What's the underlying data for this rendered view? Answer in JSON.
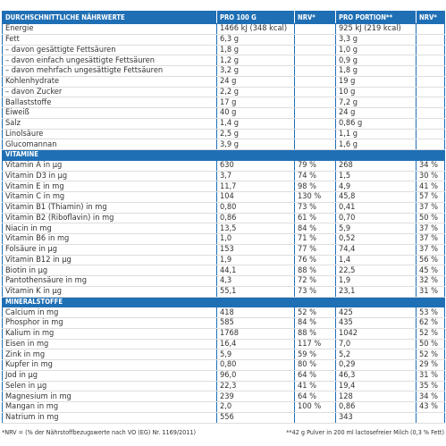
{
  "table": {
    "header": [
      "DURCHSCHNITTLICHE NÄHRWERTE",
      "PRO 100 G",
      "NRV*",
      "PRO PORTION**",
      "NRV*"
    ],
    "rows": [
      [
        "Energie",
        "1466 kJ (348 kcal)",
        null,
        "925 kJ (219 kcal)",
        null
      ],
      [
        "Fett",
        "6,3 g",
        null,
        "3,3 g",
        null
      ],
      [
        "– davon gesättigte Fettsäuren",
        "1,8 g",
        null,
        "1,0 g",
        null
      ],
      [
        "– davon einfach ungesättigte Fettsäuren",
        "1,2 g",
        null,
        "0,9 g",
        null
      ],
      [
        "– davon mehrfach ungesättigte Fettsäuren",
        "3,2 g",
        null,
        "1,8 g",
        null
      ],
      [
        "Kohlenhydrate",
        "24 g",
        null,
        "19 g",
        null
      ],
      [
        "– davon Zucker",
        "2,2 g",
        null,
        "10 g",
        null
      ],
      [
        "Ballaststoffe",
        "17 g",
        null,
        "7,2 g",
        null
      ],
      [
        "Eiweiß",
        "40 g",
        null,
        "24 g",
        null
      ],
      [
        "Salz",
        "1,4 g",
        null,
        "0,86 g",
        null
      ],
      [
        "Linolsäure",
        "2,5 g",
        null,
        "1,1 g",
        null
      ],
      [
        "Glucomannan",
        "3,9 g",
        null,
        "1,6 g",
        null
      ]
    ]
  },
  "vitamins": {
    "title": "VITAMINE",
    "rows": [
      [
        "Vitamin A in µg",
        "630",
        "79 %",
        "268",
        "34 %"
      ],
      [
        "Vitamin D3 in µg",
        "3,7",
        "74 %",
        "1,5",
        "30 %"
      ],
      [
        "Vitamin E in mg",
        "11,7",
        "98 %",
        "4,9",
        "41 %"
      ],
      [
        "Vitamin C in mg",
        "104",
        "130 %",
        "45,8",
        "57 %"
      ],
      [
        "Vitamin B1 (Thiamin) in mg",
        "0,80",
        "73 %",
        "0,41",
        "37 %"
      ],
      [
        "Vitamin B2 (Riboflavin) in mg",
        "0,86",
        "61 %",
        "0,70",
        "50 %"
      ],
      [
        "Niacin in mg",
        "13,5",
        "84 %",
        "5,9",
        "37 %"
      ],
      [
        "Vitamin B6 in mg",
        "1,0",
        "71 %",
        "0,52",
        "37 %"
      ],
      [
        "Folsäure in µg",
        "153",
        "77 %",
        "74,4",
        "37 %"
      ],
      [
        "Vitamin B12 in µg",
        "1,9",
        "76 %",
        "1,4",
        "56 %"
      ],
      [
        "Biotin in µg",
        "44,1",
        "88 %",
        "22,5",
        "45 %"
      ],
      [
        "Pantothensäure in mg",
        "4,3",
        "72 %",
        "1,9",
        "32 %"
      ],
      [
        "Vitamin K in µg",
        "55,1",
        "73 %",
        "23,1",
        "31 %"
      ]
    ]
  },
  "minerals": {
    "title": "MINERALSTOFFE",
    "rows": [
      [
        "Calcium in mg",
        "418",
        "52 %",
        "425",
        "53 %"
      ],
      [
        "Phosphor in mg",
        "585",
        "84 %",
        "435",
        "62 %"
      ],
      [
        "Kalium in mg",
        "1768",
        "88 %",
        "1042",
        "52 %"
      ],
      [
        "Eisen in mg",
        "16,4",
        "117 %",
        "7,0",
        "50 %"
      ],
      [
        "Zink in mg",
        "5,9",
        "59 %",
        "5,2",
        "52 %"
      ],
      [
        "Kupfer in mg",
        "0,80",
        "80 %",
        "0,29",
        "29 %"
      ],
      [
        "Jod in µg",
        "96,0",
        "64 %",
        "46,3",
        "31 %"
      ],
      [
        "Selen in µg",
        "22,3",
        "41 %",
        "19,4",
        "35 %"
      ],
      [
        "Magnesium in mg",
        "239",
        "64 %",
        "128",
        "34 %"
      ],
      [
        "Mangan in mg",
        "2,0",
        "100 %",
        "0,86",
        "43 %"
      ],
      [
        "Natrium in mg",
        "556",
        null,
        "343",
        null
      ]
    ]
  },
  "footnotes": [
    "*NRV = (% der Nährstoffbezugswerte nach VO (EG) Nr. 1169/2011)",
    "**42 g Pulver in 200 ml lactosefreier Milch (0,3 % Fett)"
  ]
}
